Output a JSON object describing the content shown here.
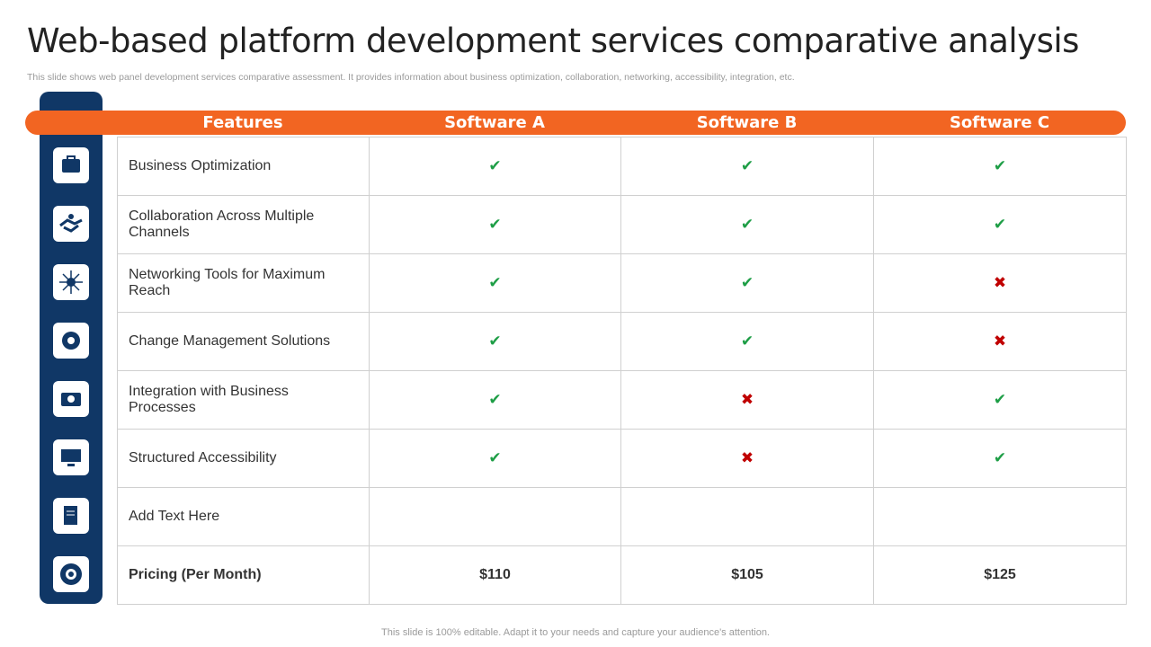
{
  "title": "Web-based platform development services comparative analysis",
  "subtitle": "This slide shows web panel development services comparative assessment. It provides information about business optimization, collaboration, networking, accessibility, integration, etc.",
  "table": {
    "header": [
      "Features",
      "Software A",
      "Software B",
      "Software C"
    ],
    "symbol_colors": {
      "✔": "#1e9e46",
      "✖": "#c00000"
    },
    "rows": [
      {
        "feature": "Business Optimization",
        "cells": [
          "✔",
          "✔",
          "✔"
        ]
      },
      {
        "feature": "Collaboration Across Multiple Channels",
        "cells": [
          "✔",
          "✔",
          "✔"
        ]
      },
      {
        "feature": "Networking Tools for Maximum Reach",
        "cells": [
          "✔",
          "✔",
          "✖"
        ]
      },
      {
        "feature": "Change Management Solutions",
        "cells": [
          "✔",
          "✔",
          "✖"
        ]
      },
      {
        "feature": "Integration with Business Processes",
        "cells": [
          "✔",
          "✖",
          "✔"
        ]
      },
      {
        "feature": "Structured Accessibility",
        "cells": [
          "✔",
          "✖",
          "✔"
        ]
      },
      {
        "feature": "Add Text Here",
        "cells": [
          null,
          null,
          null
        ]
      },
      {
        "feature": "Pricing (Per Month)",
        "cells": [
          "$110",
          "$105",
          "$125"
        ],
        "bold": true
      }
    ]
  },
  "footer": "This slide is 100% editable. Adapt it to your needs and capture your audience's attention."
}
